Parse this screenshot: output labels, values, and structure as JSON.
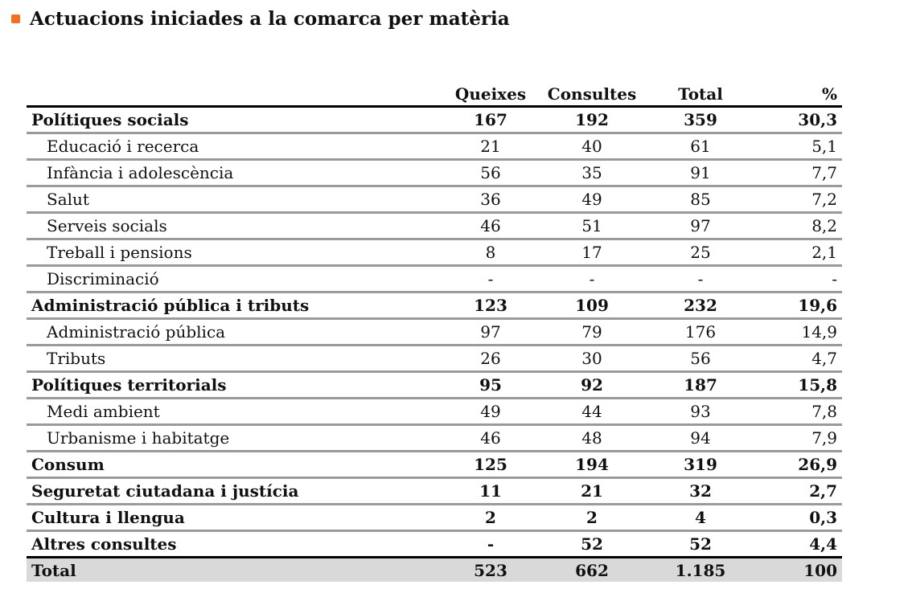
{
  "title": "Actuacions iniciades a la comarca per matèria",
  "colors": {
    "bullet": "#f26f21",
    "rule_dark": "#000000",
    "rule_light": "#9a9a9a",
    "total_bg": "#d9d9d9"
  },
  "header": {
    "label": "",
    "queixes": "Queixes",
    "consultes": "Consultes",
    "total": "Total",
    "pct": "%"
  },
  "rows": [
    {
      "label": "Polítiques socials",
      "queixes": "167",
      "consultes": "192",
      "total": "359",
      "pct": "30,3",
      "level": "main"
    },
    {
      "label": "Educació i recerca",
      "queixes": "21",
      "consultes": "40",
      "total": "61",
      "pct": "5,1",
      "level": "sub"
    },
    {
      "label": "Infància i adolescència",
      "queixes": "56",
      "consultes": "35",
      "total": "91",
      "pct": "7,7",
      "level": "sub"
    },
    {
      "label": "Salut",
      "queixes": "36",
      "consultes": "49",
      "total": "85",
      "pct": "7,2",
      "level": "sub"
    },
    {
      "label": "Serveis socials",
      "queixes": "46",
      "consultes": "51",
      "total": "97",
      "pct": "8,2",
      "level": "sub"
    },
    {
      "label": "Treball i pensions",
      "queixes": "8",
      "consultes": "17",
      "total": "25",
      "pct": "2,1",
      "level": "sub"
    },
    {
      "label": "Discriminació",
      "queixes": "-",
      "consultes": "-",
      "total": "-",
      "pct": "-",
      "level": "sub"
    },
    {
      "label": "Administració pública i tributs",
      "queixes": "123",
      "consultes": "109",
      "total": "232",
      "pct": "19,6",
      "level": "main"
    },
    {
      "label": "Administració pública",
      "queixes": "97",
      "consultes": "79",
      "total": "176",
      "pct": "14,9",
      "level": "sub"
    },
    {
      "label": "Tributs",
      "queixes": "26",
      "consultes": "30",
      "total": "56",
      "pct": "4,7",
      "level": "sub"
    },
    {
      "label": "Polítiques territorials",
      "queixes": "95",
      "consultes": "92",
      "total": "187",
      "pct": "15,8",
      "level": "main"
    },
    {
      "label": "Medi ambient",
      "queixes": "49",
      "consultes": "44",
      "total": "93",
      "pct": "7,8",
      "level": "sub"
    },
    {
      "label": "Urbanisme i habitatge",
      "queixes": "46",
      "consultes": "48",
      "total": "94",
      "pct": "7,9",
      "level": "sub"
    },
    {
      "label": "Consum",
      "queixes": "125",
      "consultes": "194",
      "total": "319",
      "pct": "26,9",
      "level": "main"
    },
    {
      "label": "Seguretat ciutadana i justícia",
      "queixes": "11",
      "consultes": "21",
      "total": "32",
      "pct": "2,7",
      "level": "main"
    },
    {
      "label": "Cultura i llengua",
      "queixes": "2",
      "consultes": "2",
      "total": "4",
      "pct": "0,3",
      "level": "main"
    },
    {
      "label": "Altres consultes",
      "queixes": "-",
      "consultes": "52",
      "total": "52",
      "pct": "4,4",
      "level": "main"
    }
  ],
  "total_row": {
    "label": "Total",
    "queixes": "523",
    "consultes": "662",
    "total": "1.185",
    "pct": "100"
  }
}
